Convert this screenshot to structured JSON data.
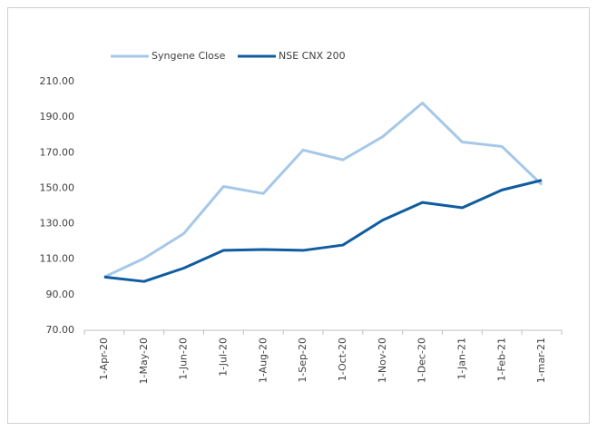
{
  "chart_data": {
    "type": "line",
    "categories": [
      "1-Apr-20",
      "1-May-20",
      "1-Jun-20",
      "1-Jul-20",
      "1-Aug-20",
      "1-Sep-20",
      "1-Oct-20",
      "1-Nov-20",
      "1-Dec-20",
      "1-Jan-21",
      "1-Feb-21",
      "1-mar-21"
    ],
    "series": [
      {
        "name": "Syngene Close",
        "color": "#a6c8e8",
        "values": [
          100,
          110.5,
          124.5,
          151,
          147,
          171.5,
          166,
          179,
          198,
          176,
          173.5,
          152
        ]
      },
      {
        "name": "NSE CNX 200",
        "color": "#0f5c9f",
        "values": [
          100,
          97.5,
          105,
          115,
          115.5,
          115,
          118,
          132,
          142,
          139,
          149,
          154.5
        ]
      }
    ],
    "ylim": [
      70,
      210
    ],
    "yticks": [
      {
        "value": 70,
        "label": "70.00"
      },
      {
        "value": 90,
        "label": "90.00"
      },
      {
        "value": 110,
        "label": "110.00"
      },
      {
        "value": 130,
        "label": "130.00"
      },
      {
        "value": 150,
        "label": "150.00"
      },
      {
        "value": 170,
        "label": "170.00"
      },
      {
        "value": 190,
        "label": "190.00"
      },
      {
        "value": 210,
        "label": "210.00"
      }
    ],
    "grid": false,
    "legend": "top"
  }
}
